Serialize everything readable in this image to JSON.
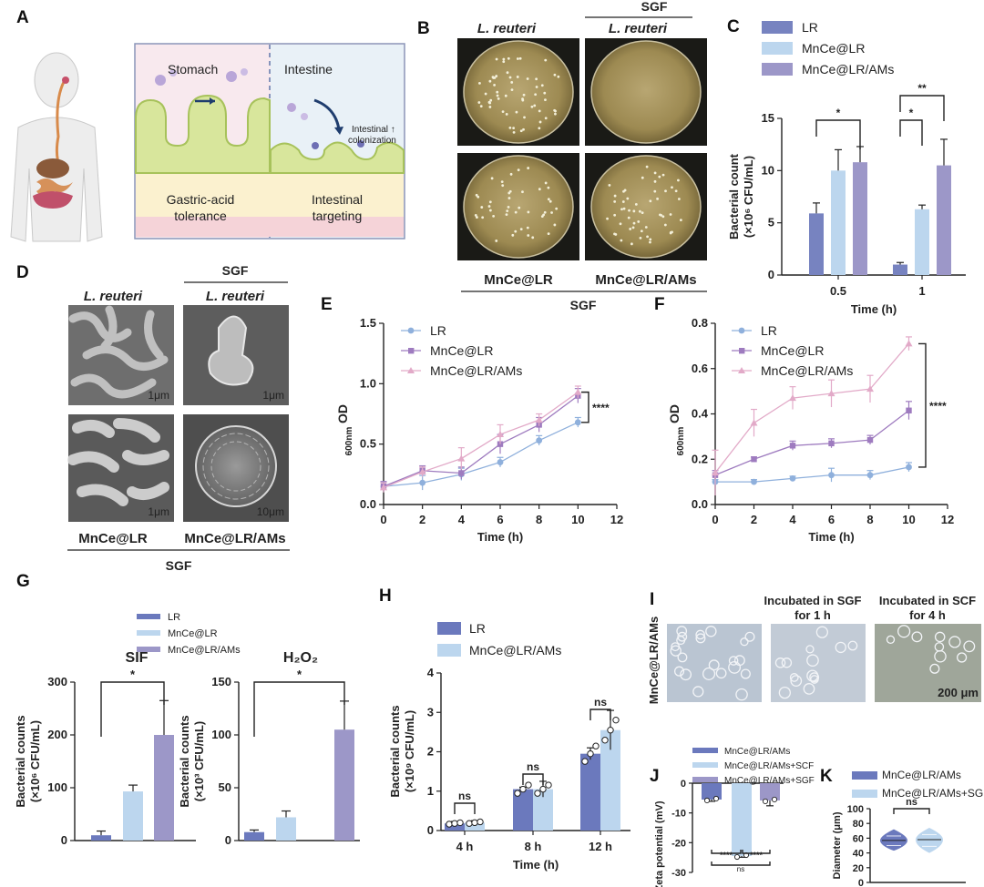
{
  "colors": {
    "lr": "#7783c0",
    "mnce": "#bcd6ee",
    "ams": "#9c97c8",
    "dark_lr": "#6b79bd",
    "pink": "#e2aac8",
    "blue": "#8fb0dc",
    "purple": "#9e7bbf"
  },
  "panels": [
    "A",
    "B",
    "C",
    "D",
    "E",
    "F",
    "G",
    "H",
    "I",
    "J",
    "K"
  ],
  "panel_a": {
    "stomach": "Stomach",
    "intestine": "Intestine",
    "colonization": "Intestinal ↑",
    "colonization2": "colonization",
    "gastric1": "Gastric-acid",
    "gastric2": "tolerance",
    "target1": "Intestinal",
    "target2": "targeting"
  },
  "panel_b": {
    "sgf_top": "SGF",
    "lreuteri_left": "L. reuteri",
    "lreuteri_right": "L. reuteri",
    "mnce": "MnCe@LR",
    "mnce_ams": "MnCe@LR/AMs",
    "sgf_bottom": "SGF"
  },
  "panel_d": {
    "sgf_top": "SGF",
    "lreuteri_left": "L. reuteri",
    "lreuteri_right": "L. reuteri",
    "scale1": "1μm",
    "scale2": "1μm",
    "scale3": "1μm",
    "scale4": "10μm",
    "mnce": "MnCe@LR",
    "mnce_ams": "MnCe@LR/AMs",
    "sgf_bottom": "SGF"
  },
  "panel_i": {
    "row_label": "MnCe@LR/AMs",
    "col2_a": "Incubated in SGF",
    "col2_b": "for 1 h",
    "col3_a": "Incubated in SCF",
    "col3_b": "for 4 h",
    "scale": "200 μm"
  },
  "chart_data": [
    {
      "panel": "C",
      "type": "bar",
      "series_names": [
        "LR",
        "MnCe@LR",
        "MnCe@LR/AMs"
      ],
      "categories": [
        "0.5",
        "1"
      ],
      "series": [
        {
          "name": "LR",
          "values": [
            5.9,
            1.0
          ],
          "err": [
            1.0,
            0.2
          ]
        },
        {
          "name": "MnCe@LR",
          "values": [
            10.0,
            6.3
          ],
          "err": [
            2.0,
            0.4
          ]
        },
        {
          "name": "MnCe@LR/AMs",
          "values": [
            10.8,
            10.5
          ],
          "err": [
            1.5,
            2.5
          ]
        }
      ],
      "ylim": [
        0,
        15
      ],
      "yticks": [
        "0",
        "5",
        "10",
        "15"
      ],
      "ylabel": "Bacterial count",
      "ylabel2": "(×10⁶ CFU/mL)",
      "xlabel": "Time (h)",
      "sig": [
        "*",
        "*",
        "**"
      ]
    },
    {
      "panel": "E",
      "type": "line",
      "x": [
        0,
        2,
        4,
        6,
        8,
        10
      ],
      "xlim": [
        0,
        12
      ],
      "xticks": [
        "0",
        "2",
        "4",
        "6",
        "8",
        "10",
        "12"
      ],
      "ylim": [
        0,
        1.5
      ],
      "yticks": [
        "0.0",
        "0.5",
        "1.0",
        "1.5"
      ],
      "series": [
        {
          "name": "LR",
          "values": [
            0.15,
            0.18,
            0.25,
            0.35,
            0.53,
            0.68
          ],
          "err": [
            0.04,
            0.06,
            0.05,
            0.04,
            0.04,
            0.04
          ]
        },
        {
          "name": "MnCe@LR",
          "values": [
            0.15,
            0.28,
            0.26,
            0.5,
            0.66,
            0.9
          ],
          "err": [
            0.04,
            0.04,
            0.05,
            0.08,
            0.06,
            0.06
          ]
        },
        {
          "name": "MnCe@LR/AMs",
          "values": [
            0.14,
            0.27,
            0.38,
            0.58,
            0.7,
            0.93
          ],
          "err": [
            0.04,
            0.04,
            0.09,
            0.08,
            0.05,
            0.05
          ]
        }
      ],
      "ylabel": "OD",
      "ylabel_sub": "600nm",
      "xlabel": "Time (h)",
      "sig": "****"
    },
    {
      "panel": "F",
      "type": "line",
      "x": [
        0,
        2,
        4,
        6,
        8,
        10
      ],
      "xlim": [
        0,
        12
      ],
      "xticks": [
        "0",
        "2",
        "4",
        "6",
        "8",
        "10",
        "12"
      ],
      "ylim": [
        0,
        0.8
      ],
      "yticks": [
        "0.0",
        "0.2",
        "0.4",
        "0.6",
        "0.8"
      ],
      "series": [
        {
          "name": "LR",
          "values": [
            0.1,
            0.1,
            0.115,
            0.13,
            0.13,
            0.165
          ],
          "err": [
            0.01,
            0.01,
            0.01,
            0.03,
            0.02,
            0.02
          ]
        },
        {
          "name": "MnCe@LR",
          "values": [
            0.13,
            0.2,
            0.26,
            0.27,
            0.285,
            0.415
          ],
          "err": [
            0.02,
            0.01,
            0.02,
            0.02,
            0.02,
            0.04
          ]
        },
        {
          "name": "MnCe@LR/AMs",
          "values": [
            0.14,
            0.36,
            0.47,
            0.49,
            0.51,
            0.71
          ],
          "err": [
            0.1,
            0.06,
            0.05,
            0.06,
            0.06,
            0.03
          ]
        }
      ],
      "ylabel": "OD",
      "ylabel_sub": "600nm",
      "xlabel": "Time (h)",
      "sig": "****"
    },
    {
      "panel": "G-SIF",
      "type": "bar",
      "title": "SIF",
      "categories": [
        "LR",
        "MnCe@LR",
        "MnCe@LR/AMs"
      ],
      "values": [
        10,
        93,
        200
      ],
      "err": [
        8,
        12,
        65
      ],
      "ylim": [
        0,
        300
      ],
      "yticks": [
        "0",
        "100",
        "200",
        "300"
      ],
      "ylabel": "Bacterial counts",
      "ylabel2": "(×10⁶ CFU/mL)",
      "sig": "*"
    },
    {
      "panel": "G-H2O2",
      "type": "bar",
      "title": "H₂O₂",
      "categories": [
        "LR",
        "MnCe@LR",
        "MnCe@LR/AMs"
      ],
      "values": [
        8,
        22,
        105
      ],
      "err": [
        2,
        6,
        27
      ],
      "ylim": [
        0,
        150
      ],
      "yticks": [
        "0",
        "50",
        "100",
        "150"
      ],
      "ylabel": "Bacterial counts",
      "ylabel2": "(×10³ CFU/mL)",
      "sig": "*"
    },
    {
      "panel": "H",
      "type": "bar",
      "categories": [
        "4 h",
        "8 h",
        "12 h"
      ],
      "series": [
        {
          "name": "LR",
          "values": [
            0.18,
            1.05,
            1.95
          ],
          "err": [
            0.05,
            0.05,
            0.15
          ]
        },
        {
          "name": "MnCe@LR/AMs",
          "values": [
            0.2,
            1.05,
            2.55
          ],
          "err": [
            0.05,
            0.2,
            0.5
          ]
        }
      ],
      "ylim": [
        0,
        4
      ],
      "yticks": [
        "0",
        "1",
        "2",
        "3",
        "4"
      ],
      "ylabel": "Bacterial counts",
      "ylabel2": "(×10⁹ CFU/mL)",
      "xlabel": "Time (h)",
      "sig": [
        "ns",
        "ns",
        "ns"
      ]
    },
    {
      "panel": "J",
      "type": "bar",
      "categories": [
        "MnCe@LR/AMs",
        "MnCe@LR/AMs+SCF",
        "MnCe@LR/AMs+SGF"
      ],
      "values": [
        -5.5,
        -24.5,
        -5.8
      ],
      "err": [
        0.6,
        0.4,
        1.8
      ],
      "ylim": [
        -30,
        0
      ],
      "yticks": [
        "0",
        "-10",
        "-20",
        "-30"
      ],
      "ylabel": "Zeta potential (mV)",
      "sig": [
        "****",
        "****",
        "ns"
      ]
    },
    {
      "panel": "K",
      "type": "violin",
      "categories": [
        "MnCe@LR/AMs",
        "MnCe@LR/AMs+SGF"
      ],
      "median": [
        57,
        58
      ],
      "q1": [
        50,
        49
      ],
      "q3": [
        63,
        65
      ],
      "min": [
        43,
        40
      ],
      "max": [
        72,
        74
      ],
      "ylim": [
        0,
        100
      ],
      "yticks": [
        "0",
        "20",
        "40",
        "60",
        "80",
        "100"
      ],
      "ylabel": "Diameter (μm)",
      "sig": "ns"
    }
  ]
}
